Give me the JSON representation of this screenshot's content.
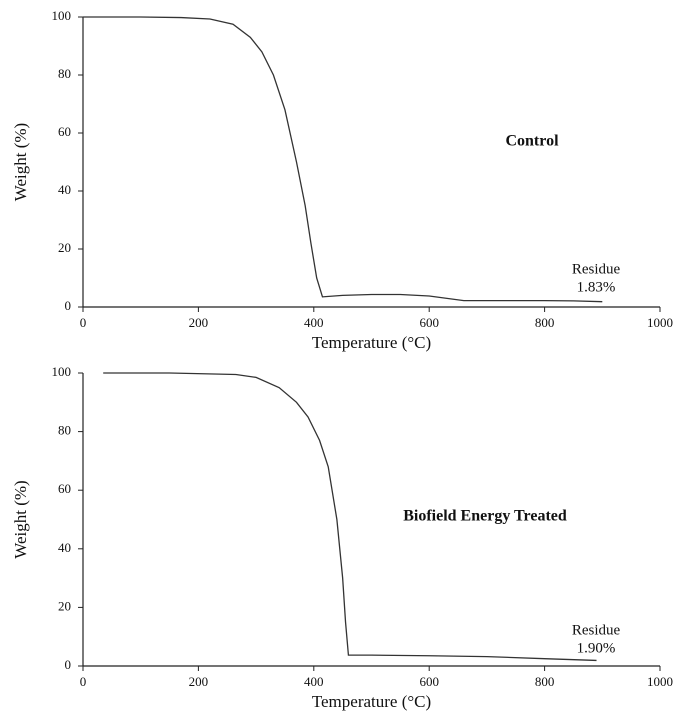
{
  "chart_data": [
    {
      "type": "line",
      "label": "Control",
      "annotations": [
        "Residue",
        "1.83%"
      ],
      "xlabel": "Temperature (°C)",
      "ylabel": "Weight (%)",
      "xlim": [
        0,
        1000
      ],
      "xticks": [
        0,
        200,
        400,
        600,
        800,
        1000
      ],
      "ylim": [
        0,
        100
      ],
      "yticks": [
        0,
        20,
        40,
        60,
        80,
        100
      ],
      "color": "#333333",
      "x": [
        0,
        100,
        170,
        220,
        260,
        290,
        310,
        330,
        350,
        370,
        385,
        395,
        405,
        415,
        450,
        500,
        550,
        600,
        660,
        700,
        800,
        850,
        900
      ],
      "values": [
        100,
        100,
        99.8,
        99.3,
        97.5,
        93,
        88,
        80,
        68,
        50,
        35,
        22,
        10,
        3.5,
        4,
        4.3,
        4.3,
        3.8,
        2.2,
        2.2,
        2.2,
        2.1,
        1.83
      ]
    },
    {
      "type": "line",
      "label": "Biofield Energy Treated",
      "annotations": [
        "Residue",
        "1.90%"
      ],
      "xlabel": "Temperature (°C)",
      "ylabel": "Weight (%)",
      "xlim": [
        0,
        1000
      ],
      "xticks": [
        0,
        200,
        400,
        600,
        800,
        1000
      ],
      "ylim": [
        0,
        100
      ],
      "yticks": [
        0,
        20,
        40,
        60,
        80,
        100
      ],
      "color": "#333333",
      "x": [
        35,
        150,
        265,
        300,
        340,
        370,
        390,
        410,
        425,
        440,
        450,
        455,
        460,
        500,
        600,
        700,
        800,
        890
      ],
      "values": [
        100,
        100,
        99.5,
        98.5,
        95,
        90,
        85,
        77,
        68,
        50,
        30,
        15,
        3.7,
        3.7,
        3.5,
        3.2,
        2.5,
        1.9
      ]
    }
  ]
}
